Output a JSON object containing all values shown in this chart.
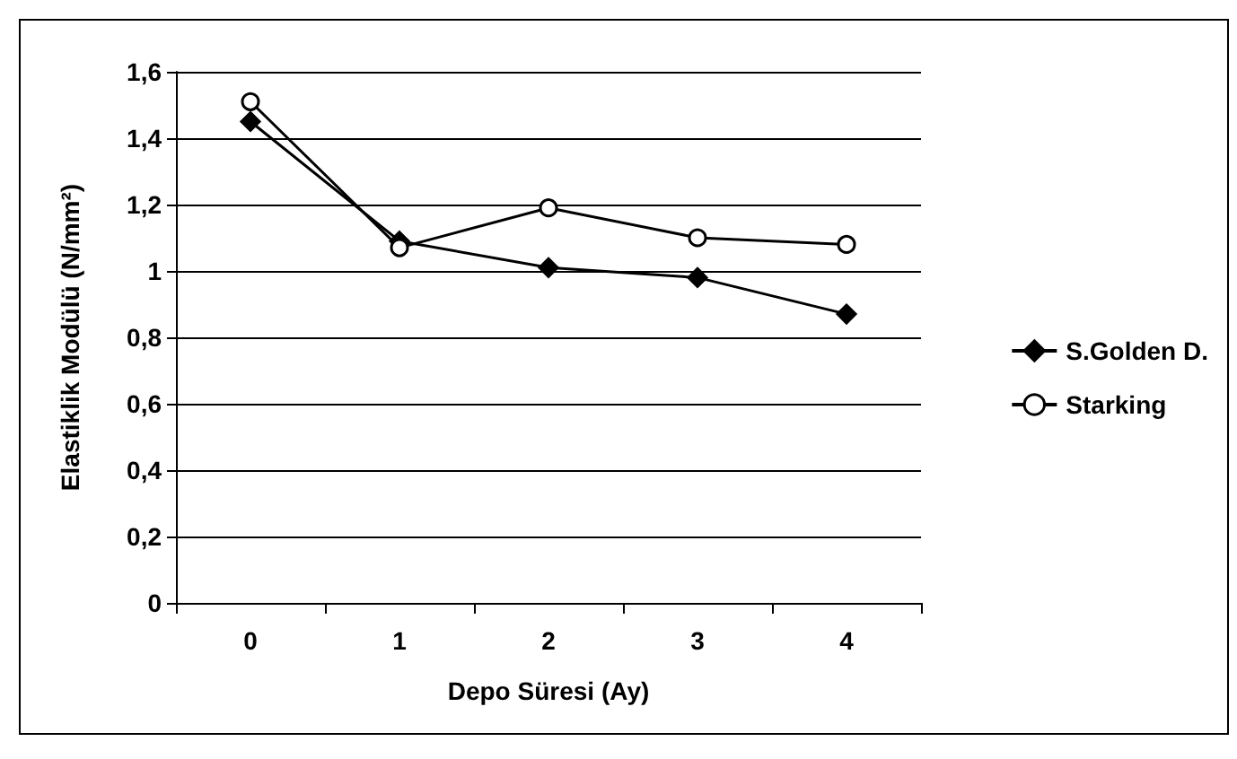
{
  "chart_data": {
    "type": "line",
    "xlabel": "Depo Süresi (Ay)",
    "ylabel": "Elastiklik Modülü (N/mm²)",
    "categories": [
      "0",
      "1",
      "2",
      "3",
      "4"
    ],
    "series": [
      {
        "name": "S.Golden D.",
        "color": "#000000",
        "marker": "diamond",
        "values": [
          1.45,
          1.09,
          1.01,
          0.98,
          0.87
        ]
      },
      {
        "name": "Starking",
        "color": "#000000",
        "marker": "circle",
        "values": [
          1.51,
          1.07,
          1.19,
          1.1,
          1.08
        ]
      }
    ],
    "ylim": [
      0,
      1.6
    ],
    "yticks": [
      0,
      {
        "value": 0.2,
        "label": "0,2"
      },
      {
        "value": 0.4,
        "label": "0,4"
      },
      {
        "value": 0.6,
        "label": "0,6"
      },
      {
        "value": 0.8,
        "label": "0,8"
      },
      1,
      {
        "value": 1.2,
        "label": "1,2"
      },
      {
        "value": 1.4,
        "label": "1,4"
      },
      {
        "value": 1.6,
        "label": "1,6"
      }
    ],
    "grid": "y",
    "legend": "right"
  }
}
